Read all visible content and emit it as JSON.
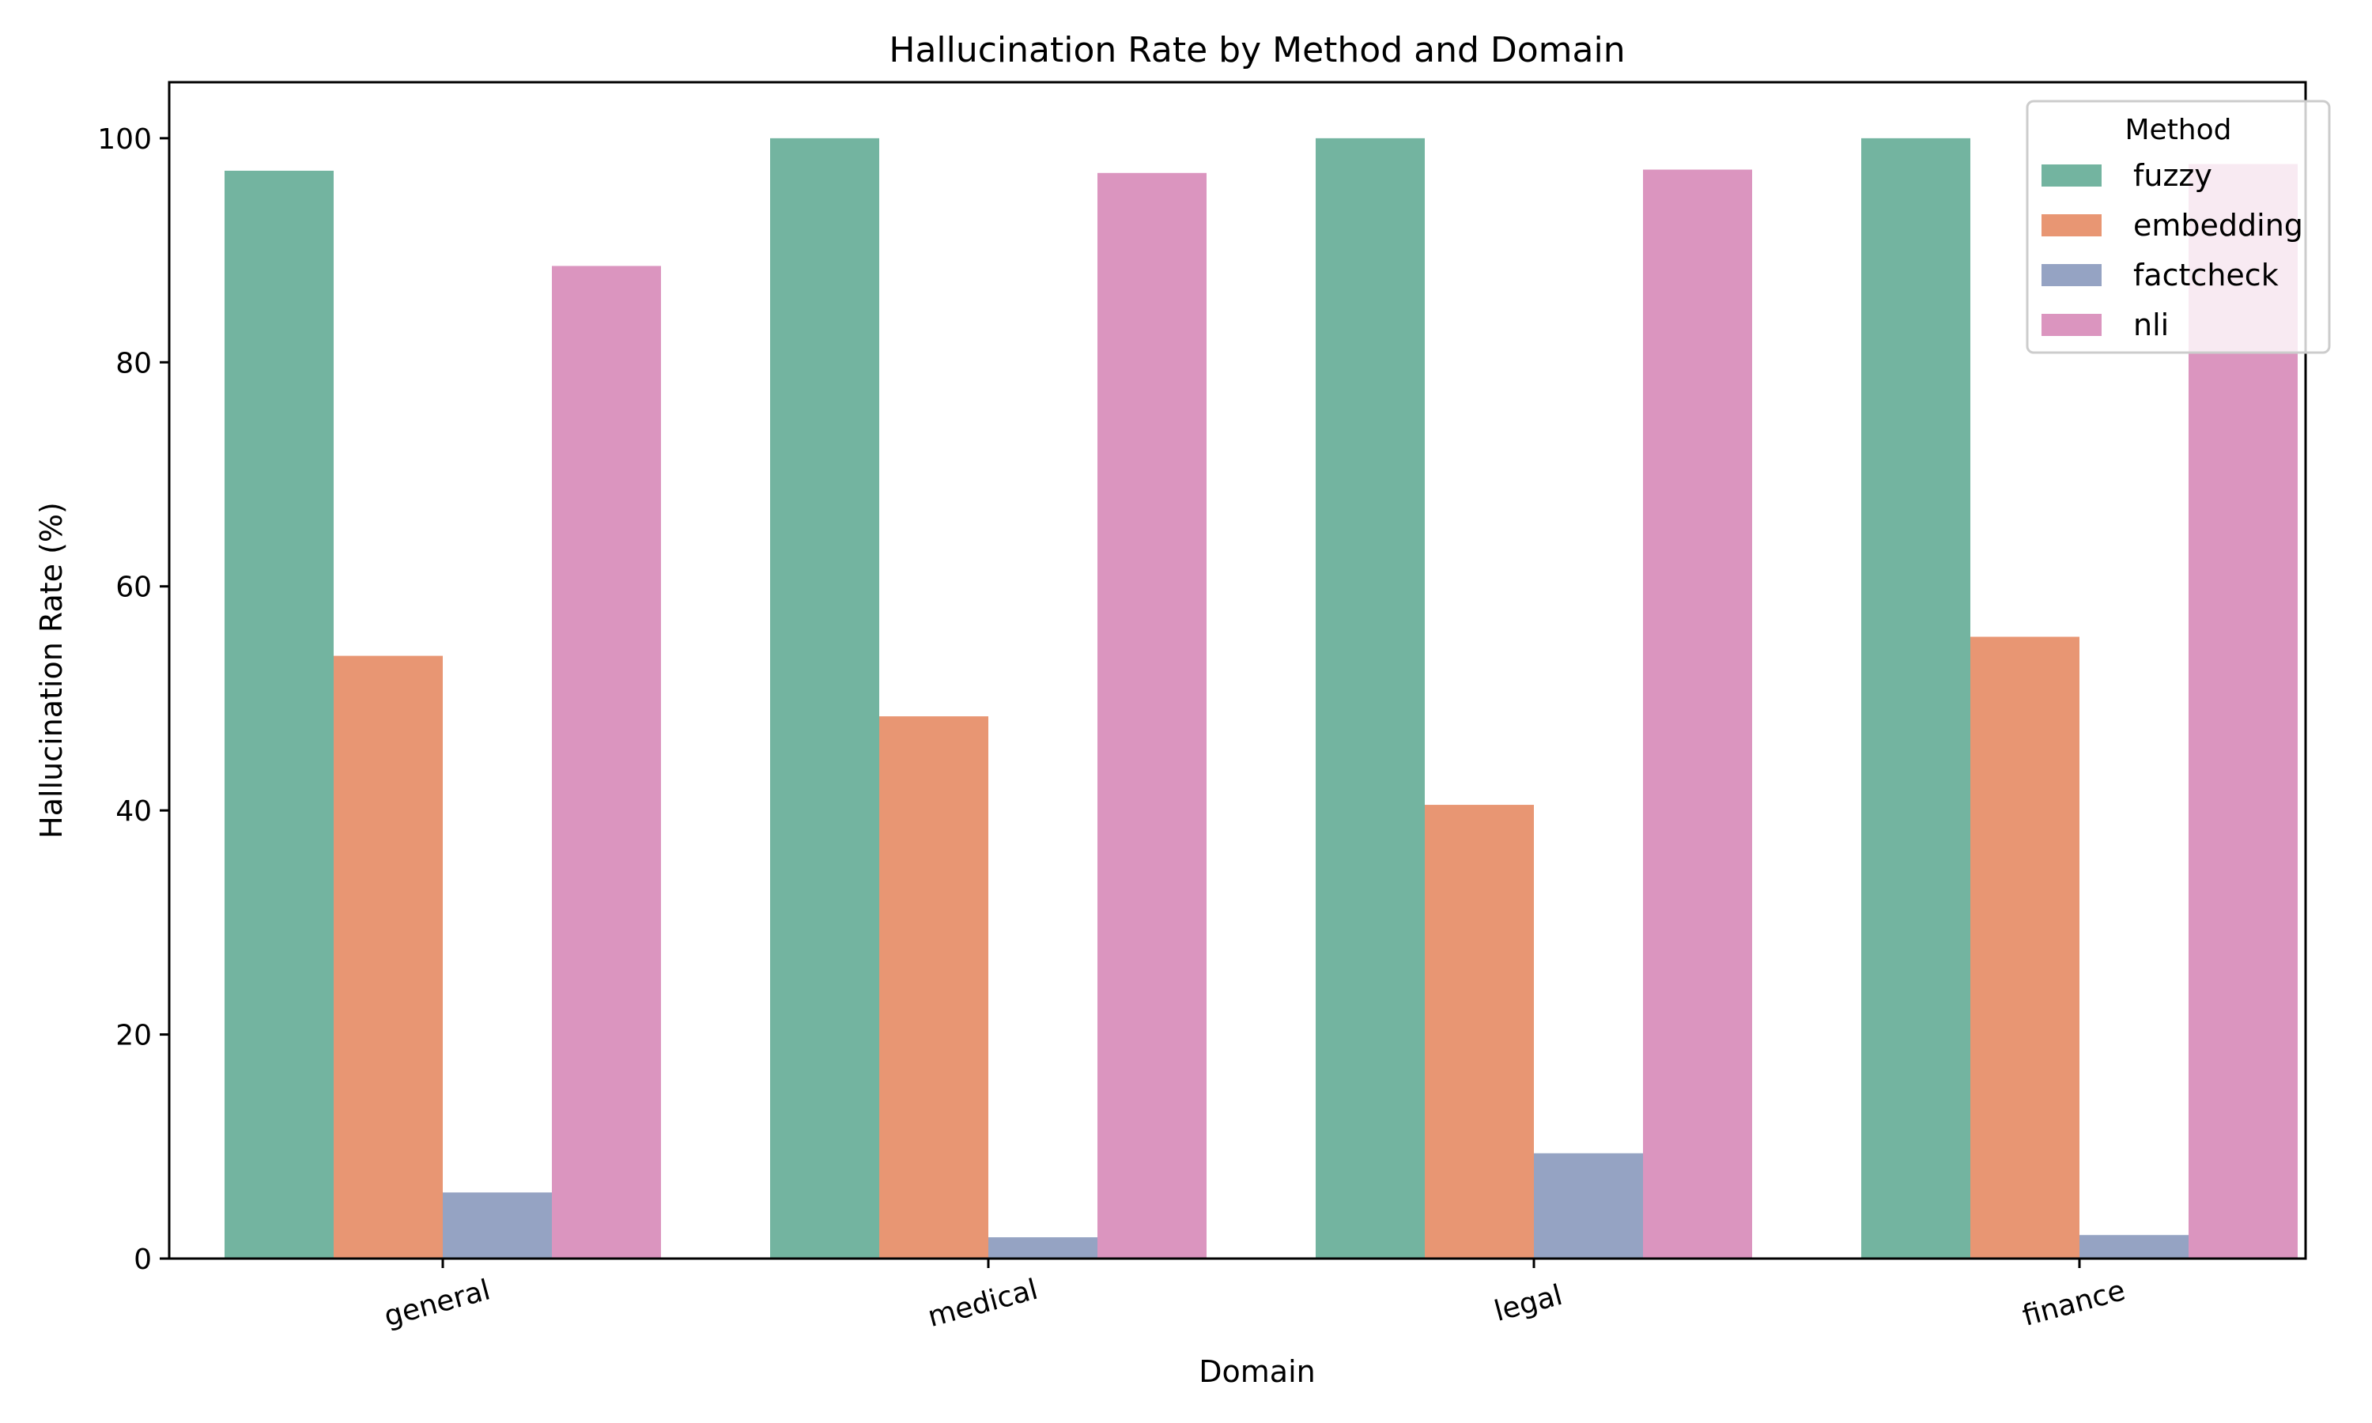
{
  "chart_data": {
    "type": "bar",
    "title": "Hallucination Rate by Method and Domain",
    "xlabel": "Domain",
    "ylabel": "Hallucination Rate (%)",
    "categories": [
      "general",
      "medical",
      "legal",
      "finance"
    ],
    "ylim": [
      0,
      105
    ],
    "yticks": [
      0,
      20,
      40,
      60,
      80,
      100
    ],
    "grid": false,
    "legend": {
      "title": "Method",
      "placement": "top-right"
    },
    "series": [
      {
        "name": "fuzzy",
        "color": "#73b4a0",
        "values": [
          97.1,
          100.0,
          100.0,
          100.0
        ]
      },
      {
        "name": "embedding",
        "color": "#e89673",
        "values": [
          53.8,
          48.4,
          40.5,
          55.5
        ]
      },
      {
        "name": "factcheck",
        "color": "#95a3c3",
        "values": [
          5.9,
          1.9,
          9.4,
          2.1
        ]
      },
      {
        "name": "nli",
        "color": "#db95bf",
        "values": [
          88.6,
          96.9,
          97.2,
          97.7
        ]
      }
    ]
  }
}
